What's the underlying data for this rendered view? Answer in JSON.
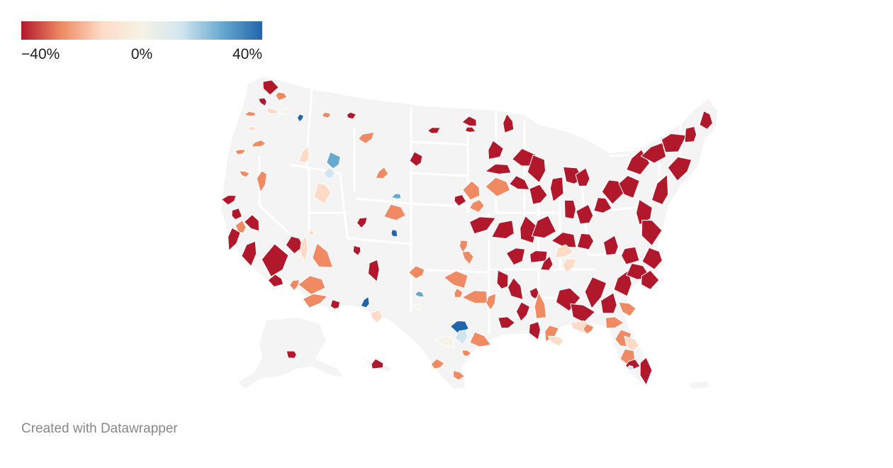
{
  "legend": {
    "min_label": "−40%",
    "mid_label": "0%",
    "max_label": "40%",
    "min_value": -40,
    "max_value": 40,
    "colors": [
      "#b2182b",
      "#ef8a62",
      "#fddbc7",
      "#f6f3e6",
      "#d1e5f0",
      "#67a9cf",
      "#2166ac"
    ]
  },
  "map": {
    "subject": "United States counties choropleth",
    "land_color": "#f4f4f4",
    "border_color": "#ffffff"
  },
  "footer": {
    "credit": "Created with Datawrapper"
  }
}
